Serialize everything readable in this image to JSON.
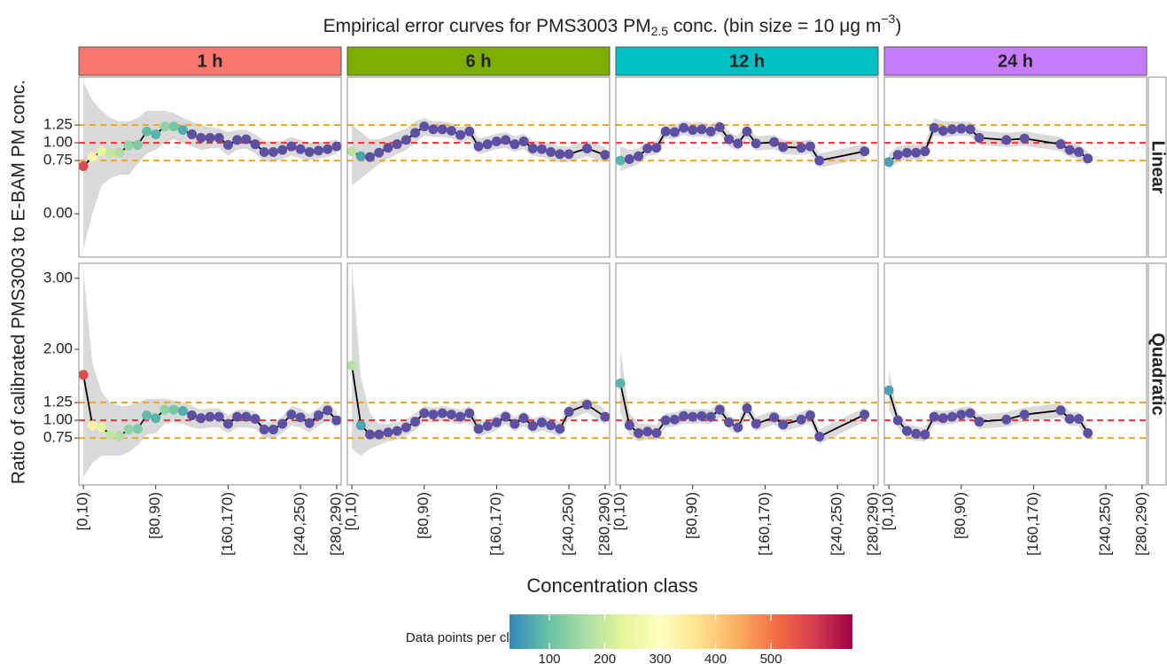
{
  "chart_data": {
    "type": "line",
    "title": [
      "Empirical error curves for PMS3003 PM",
      "2.5",
      " conc. (bin size = 10 μg m",
      "−3",
      ")"
    ],
    "x_label": "Concentration class",
    "y_label": "Ratio of calibrated PMS3003 to E-BAM PM conc.",
    "xlim": [
      -5,
      285
    ],
    "xticks": [
      {
        "value": 0,
        "label": "[0,10)"
      },
      {
        "value": 80,
        "label": "[80,90)"
      },
      {
        "value": 160,
        "label": "[160,170)"
      },
      {
        "value": 240,
        "label": "[240,250)"
      },
      {
        "value": 280,
        "label": "[280,290)"
      }
    ],
    "line_color": "#000000",
    "band_color": "#d9d9d9",
    "reference_lines": [
      {
        "value": 0.75,
        "color": "#f5a623"
      },
      {
        "value": 1,
        "color": "#ee3333"
      },
      {
        "value": 1.25,
        "color": "#f5a623"
      }
    ],
    "rows": [
      {
        "label": "Linear",
        "ylim": [
          -0.61,
          1.925
        ],
        "yticks": [
          {
            "value": 0,
            "label": "0.00"
          },
          {
            "value": 0.75,
            "label": "0.75"
          },
          {
            "value": 1,
            "label": "1.00"
          },
          {
            "value": 1.25,
            "label": "1.25"
          }
        ]
      },
      {
        "label": "Quadratic",
        "ylim": [
          0.09,
          3.21
        ],
        "yticks": [
          {
            "value": 0.75,
            "label": "0.75"
          },
          {
            "value": 1,
            "label": "1.00"
          },
          {
            "value": 1.25,
            "label": "1.25"
          },
          {
            "value": 2,
            "label": "2.00"
          },
          {
            "value": 3,
            "label": "3.00"
          }
        ]
      }
    ],
    "columns": [
      {
        "label": "1 h",
        "color": "#f8766d",
        "x": [
          0,
          10,
          20,
          30,
          40,
          50,
          60,
          70,
          80,
          90,
          100,
          110,
          120,
          130,
          140,
          150,
          160,
          170,
          180,
          190,
          200,
          210,
          220,
          230,
          240,
          250,
          260,
          270,
          280
        ],
        "counts": [
          560,
          330,
          240,
          190,
          170,
          140,
          120,
          90,
          80,
          140,
          110,
          70,
          20,
          20,
          20,
          20,
          20,
          20,
          20,
          20,
          20,
          20,
          20,
          20,
          20,
          20,
          20,
          20,
          20
        ],
        "rows": [
          {
            "values": [
              0.67,
              0.8,
              0.88,
              0.86,
              0.86,
              0.96,
              0.97,
              1.16,
              1.12,
              1.23,
              1.23,
              1.18,
              1.12,
              1.07,
              1.07,
              1.07,
              0.97,
              1.04,
              1.05,
              0.98,
              0.87,
              0.87,
              0.9,
              0.95,
              0.91,
              0.87,
              0.89,
              0.91,
              0.95
            ],
            "upper": [
              1.85,
              1.6,
              1.45,
              1.35,
              1.3,
              1.3,
              1.35,
              1.45,
              1.45,
              1.45,
              1.42,
              1.35,
              1.3,
              1.25,
              1.22,
              1.2,
              1.15,
              1.18,
              1.18,
              1.12,
              1.02,
              1.02,
              1.03,
              1.08,
              1.04,
              1.0,
              1.01,
              1.02,
              1.05
            ],
            "lower": [
              -0.5,
              0.0,
              0.4,
              0.5,
              0.55,
              0.55,
              0.7,
              0.85,
              0.9,
              1.0,
              1.05,
              1.0,
              0.95,
              0.9,
              0.92,
              0.93,
              0.82,
              0.9,
              0.92,
              0.85,
              0.74,
              0.73,
              0.77,
              0.82,
              0.78,
              0.75,
              0.78,
              0.8,
              0.85
            ]
          },
          {
            "values": [
              1.64,
              0.93,
              0.9,
              0.8,
              0.78,
              0.87,
              0.88,
              1.07,
              1.03,
              1.15,
              1.15,
              1.13,
              1.07,
              1.03,
              1.05,
              1.05,
              0.95,
              1.05,
              1.05,
              1.02,
              0.87,
              0.87,
              0.95,
              1.08,
              1.04,
              0.96,
              1.07,
              1.14,
              1.0
            ],
            "upper": [
              3.1,
              1.8,
              1.4,
              1.25,
              1.2,
              1.2,
              1.25,
              1.3,
              1.3,
              1.3,
              1.28,
              1.25,
              1.2,
              1.15,
              1.17,
              1.17,
              1.07,
              1.15,
              1.15,
              1.12,
              0.97,
              0.97,
              1.05,
              1.2,
              1.17,
              1.08,
              1.18,
              1.27,
              1.12
            ],
            "lower": [
              0.2,
              0.4,
              0.5,
              0.5,
              0.5,
              0.55,
              0.65,
              0.8,
              0.82,
              0.95,
              0.97,
              0.95,
              0.9,
              0.88,
              0.9,
              0.9,
              0.82,
              0.9,
              0.9,
              0.88,
              0.75,
              0.75,
              0.82,
              0.93,
              0.9,
              0.83,
              0.92,
              1.0,
              0.88
            ]
          }
        ]
      },
      {
        "label": "6 h",
        "color": "#7cae00",
        "x": [
          0,
          10,
          20,
          30,
          40,
          50,
          60,
          70,
          80,
          90,
          100,
          110,
          120,
          130,
          140,
          150,
          160,
          170,
          180,
          190,
          200,
          210,
          220,
          230,
          240,
          260,
          280
        ],
        "counts": [
          180,
          60,
          20,
          20,
          20,
          20,
          20,
          20,
          20,
          20,
          20,
          20,
          20,
          20,
          20,
          20,
          20,
          20,
          20,
          20,
          20,
          20,
          20,
          20,
          20,
          20,
          20
        ],
        "rows": [
          {
            "values": [
              0.88,
              0.81,
              0.8,
              0.86,
              0.93,
              0.98,
              1.04,
              1.14,
              1.23,
              1.19,
              1.19,
              1.17,
              1.11,
              1.16,
              0.95,
              0.98,
              1.02,
              1.04,
              0.98,
              1.02,
              0.92,
              0.91,
              0.87,
              0.84,
              0.84,
              0.92,
              0.83
            ],
            "upper": [
              1.25,
              1.15,
              1.05,
              1.05,
              1.1,
              1.15,
              1.2,
              1.3,
              1.35,
              1.3,
              1.3,
              1.28,
              1.22,
              1.27,
              1.06,
              1.09,
              1.13,
              1.15,
              1.09,
              1.13,
              1.03,
              1.02,
              0.98,
              0.95,
              0.95,
              1.03,
              0.94
            ],
            "lower": [
              0.4,
              0.5,
              0.6,
              0.7,
              0.78,
              0.84,
              0.9,
              1.0,
              1.1,
              1.08,
              1.08,
              1.06,
              1.0,
              1.05,
              0.84,
              0.87,
              0.91,
              0.93,
              0.87,
              0.91,
              0.81,
              0.8,
              0.76,
              0.73,
              0.73,
              0.81,
              0.72
            ]
          },
          {
            "values": [
              1.77,
              0.93,
              0.8,
              0.8,
              0.83,
              0.85,
              0.9,
              0.98,
              1.1,
              1.08,
              1.1,
              1.08,
              1.05,
              1.1,
              0.88,
              0.92,
              0.97,
              1.05,
              0.95,
              1.03,
              0.92,
              0.97,
              0.93,
              0.88,
              1.12,
              1.22,
              1.05
            ],
            "upper": [
              3.2,
              1.6,
              1.1,
              0.95,
              0.95,
              0.97,
              1.02,
              1.1,
              1.2,
              1.18,
              1.2,
              1.18,
              1.15,
              1.2,
              0.98,
              1.02,
              1.07,
              1.15,
              1.05,
              1.13,
              1.02,
              1.07,
              1.03,
              0.98,
              1.22,
              1.32,
              1.15
            ],
            "lower": [
              0.6,
              0.5,
              0.6,
              0.65,
              0.7,
              0.73,
              0.78,
              0.86,
              0.98,
              0.97,
              0.99,
              0.97,
              0.94,
              0.99,
              0.77,
              0.81,
              0.86,
              0.94,
              0.84,
              0.92,
              0.81,
              0.86,
              0.82,
              0.77,
              1.01,
              1.11,
              0.94
            ]
          }
        ]
      },
      {
        "label": "12 h",
        "color": "#00bfc4",
        "x": [
          0,
          10,
          20,
          30,
          40,
          50,
          60,
          70,
          80,
          90,
          100,
          110,
          120,
          130,
          140,
          150,
          170,
          180,
          200,
          210,
          220,
          270
        ],
        "counts": [
          80,
          20,
          20,
          20,
          20,
          20,
          20,
          20,
          20,
          20,
          20,
          20,
          20,
          20,
          20,
          20,
          20,
          20,
          20,
          20,
          20,
          20
        ],
        "rows": [
          {
            "values": [
              0.75,
              0.77,
              0.81,
              0.92,
              0.93,
              1.16,
              1.15,
              1.21,
              1.18,
              1.19,
              1.16,
              1.22,
              1.05,
              0.99,
              1.16,
              0.99,
              1.01,
              0.94,
              0.93,
              0.95,
              0.75,
              0.88
            ],
            "upper": [
              0.95,
              0.9,
              0.92,
              1.02,
              1.03,
              1.26,
              1.25,
              1.31,
              1.28,
              1.29,
              1.26,
              1.32,
              1.15,
              1.09,
              1.26,
              1.09,
              1.11,
              1.04,
              1.03,
              1.05,
              0.85,
              0.98
            ],
            "lower": [
              0.6,
              0.65,
              0.7,
              0.82,
              0.83,
              1.06,
              1.05,
              1.11,
              1.08,
              1.09,
              1.06,
              1.12,
              0.95,
              0.89,
              1.06,
              0.89,
              0.91,
              0.84,
              0.83,
              0.85,
              0.65,
              0.78
            ]
          },
          {
            "values": [
              1.52,
              0.93,
              0.82,
              0.84,
              0.82,
              1.0,
              1.01,
              1.06,
              1.05,
              1.06,
              1.05,
              1.15,
              0.97,
              0.9,
              1.17,
              0.95,
              1.04,
              0.94,
              1.01,
              1.07,
              0.77,
              1.08
            ],
            "upper": [
              2.0,
              1.1,
              0.95,
              0.95,
              0.93,
              1.1,
              1.11,
              1.16,
              1.15,
              1.16,
              1.15,
              1.25,
              1.07,
              1.0,
              1.27,
              1.05,
              1.14,
              1.04,
              1.11,
              1.17,
              0.87,
              1.18
            ],
            "lower": [
              1.1,
              0.8,
              0.7,
              0.73,
              0.72,
              0.9,
              0.91,
              0.96,
              0.95,
              0.96,
              0.95,
              1.05,
              0.87,
              0.8,
              1.07,
              0.85,
              0.94,
              0.84,
              0.91,
              0.97,
              0.67,
              0.98
            ]
          }
        ]
      },
      {
        "label": "24 h",
        "color": "#c77cff",
        "x": [
          0,
          10,
          20,
          30,
          40,
          50,
          60,
          70,
          80,
          90,
          100,
          130,
          150,
          190,
          200,
          210,
          220
        ],
        "counts": [
          60,
          20,
          20,
          20,
          20,
          20,
          20,
          20,
          20,
          20,
          20,
          20,
          20,
          20,
          20,
          20,
          20
        ],
        "rows": [
          {
            "values": [
              0.73,
              0.83,
              0.86,
              0.86,
              0.88,
              1.21,
              1.17,
              1.19,
              1.2,
              1.19,
              1.07,
              1.04,
              1.06,
              0.98,
              0.9,
              0.87,
              0.78
            ],
            "upper": [
              0.85,
              0.95,
              0.97,
              0.97,
              0.99,
              1.35,
              1.3,
              1.3,
              1.3,
              1.29,
              1.17,
              1.14,
              1.16,
              1.08,
              1.0,
              0.97,
              0.88
            ],
            "lower": [
              0.63,
              0.73,
              0.76,
              0.76,
              0.78,
              1.11,
              1.07,
              1.09,
              1.1,
              1.09,
              0.97,
              0.94,
              0.96,
              0.88,
              0.8,
              0.77,
              0.68
            ]
          },
          {
            "values": [
              1.42,
              1.0,
              0.85,
              0.81,
              0.8,
              1.05,
              1.03,
              1.05,
              1.08,
              1.1,
              0.98,
              1.01,
              1.08,
              1.14,
              1.02,
              1.02,
              0.82
            ],
            "upper": [
              1.7,
              1.1,
              0.95,
              0.91,
              0.9,
              1.15,
              1.13,
              1.15,
              1.18,
              1.2,
              1.08,
              1.11,
              1.18,
              1.24,
              1.12,
              1.12,
              0.92
            ],
            "lower": [
              1.15,
              0.9,
              0.75,
              0.71,
              0.7,
              0.95,
              0.93,
              0.95,
              0.98,
              1.0,
              0.88,
              0.91,
              0.98,
              1.04,
              0.92,
              0.92,
              0.72
            ]
          }
        ]
      }
    ],
    "colorbar": {
      "title": "Data points per class",
      "lim": [
        28,
        647
      ],
      "ticks": [
        100,
        200,
        300,
        400,
        500
      ],
      "colors": [
        "#3288bd",
        "#66c2a5",
        "#abdda4",
        "#e6f598",
        "#ffffbf",
        "#fee08b",
        "#fdae61",
        "#f46d43",
        "#d53e4f",
        "#9e0142"
      ],
      "low_color": "#5e4fa2"
    }
  }
}
